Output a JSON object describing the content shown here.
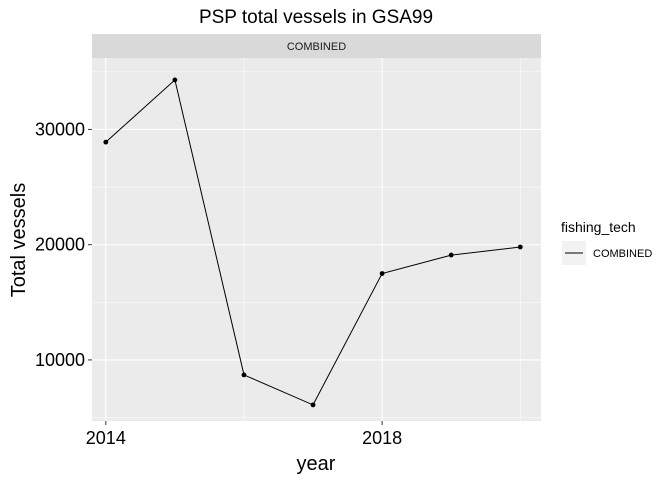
{
  "chart_data": {
    "type": "line",
    "title": "PSP total vessels in GSA99",
    "facet_label": "COMBINED",
    "xlabel": "year",
    "ylabel": "Total vessels",
    "x_ticks": [
      2014,
      2018
    ],
    "y_ticks": [
      10000,
      20000,
      30000
    ],
    "xlim": [
      2013.8,
      2020.3
    ],
    "ylim": [
      4700,
      36200
    ],
    "grid": true,
    "legend": {
      "title": "fishing_tech",
      "position": "right",
      "entries": [
        "COMBINED"
      ]
    },
    "series": [
      {
        "name": "COMBINED",
        "color": "#000000",
        "x": [
          2014,
          2015,
          2016,
          2017,
          2018,
          2019,
          2020
        ],
        "y": [
          28900,
          34300,
          8700,
          6100,
          17500,
          19100,
          19800
        ]
      }
    ]
  },
  "colors": {
    "panel_background": "#ebebeb",
    "grid_major": "#ffffff",
    "strip_background": "#d9d9d9"
  }
}
